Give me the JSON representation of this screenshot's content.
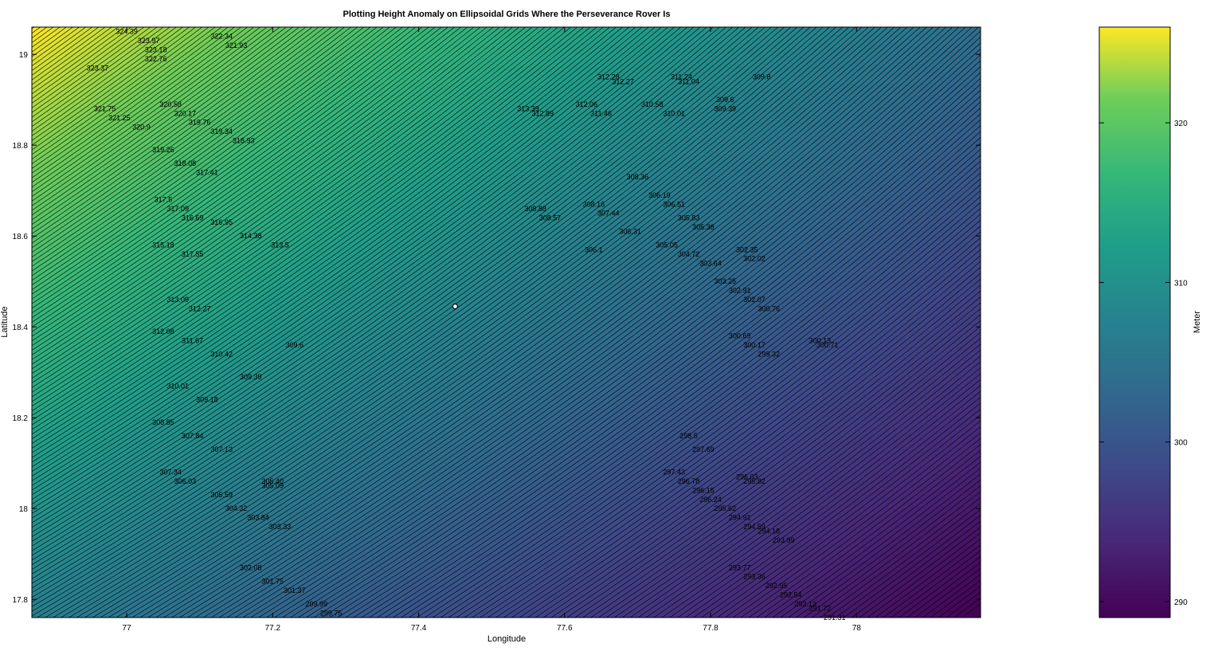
{
  "chart_data": {
    "type": "contour",
    "title": "Plotting Height Anomaly on Ellipsoidal Grids Where the Perseverance Rover Is",
    "xlabel": "Longitude",
    "ylabel": "Latitude",
    "xlim": [
      76.87,
      78.17
    ],
    "ylim": [
      17.76,
      19.06
    ],
    "xticks": [
      "77",
      "77.2",
      "77.4",
      "77.6",
      "77.8",
      "78"
    ],
    "yticks": [
      "17.8",
      "18",
      "18.2",
      "18.4",
      "18.6",
      "18.8",
      "19"
    ],
    "colormap": "viridis",
    "colorbar": {
      "label": "Meter",
      "limits": [
        289,
        326
      ],
      "ticks": [
        "290",
        "300",
        "310",
        "320"
      ]
    },
    "field": {
      "value_at_top_left": 326,
      "value_at_top_right": 304,
      "value_at_bottom_left": 307,
      "value_at_bottom_right": 289
    },
    "contour_interval": 0.15,
    "grid": false,
    "marker": {
      "lon": 77.45,
      "lat": 18.445,
      "label": ""
    },
    "labels": [
      {
        "lon": 77.0,
        "lat": 19.05,
        "text": "324.39"
      },
      {
        "lon": 77.03,
        "lat": 19.03,
        "text": "323.97"
      },
      {
        "lon": 77.04,
        "lat": 19.01,
        "text": "323.18"
      },
      {
        "lon": 77.04,
        "lat": 18.99,
        "text": "322.76"
      },
      {
        "lon": 77.13,
        "lat": 19.04,
        "text": "322.34"
      },
      {
        "lon": 77.15,
        "lat": 19.02,
        "text": "321.93"
      },
      {
        "lon": 76.96,
        "lat": 18.97,
        "text": "323.37"
      },
      {
        "lon": 76.97,
        "lat": 18.88,
        "text": "321.75"
      },
      {
        "lon": 76.99,
        "lat": 18.86,
        "text": "321.25"
      },
      {
        "lon": 77.02,
        "lat": 18.84,
        "text": "320.9"
      },
      {
        "lon": 77.06,
        "lat": 18.89,
        "text": "320.58"
      },
      {
        "lon": 77.08,
        "lat": 18.87,
        "text": "320.17"
      },
      {
        "lon": 77.1,
        "lat": 18.85,
        "text": "319.76"
      },
      {
        "lon": 77.13,
        "lat": 18.83,
        "text": "319.34"
      },
      {
        "lon": 77.16,
        "lat": 18.81,
        "text": "318.93"
      },
      {
        "lon": 77.05,
        "lat": 18.79,
        "text": "319.26"
      },
      {
        "lon": 77.08,
        "lat": 18.76,
        "text": "318.08"
      },
      {
        "lon": 77.11,
        "lat": 18.74,
        "text": "317.41"
      },
      {
        "lon": 77.05,
        "lat": 18.68,
        "text": "317.5"
      },
      {
        "lon": 77.07,
        "lat": 18.66,
        "text": "317.09"
      },
      {
        "lon": 77.09,
        "lat": 18.64,
        "text": "316.69"
      },
      {
        "lon": 77.13,
        "lat": 18.63,
        "text": "316.95"
      },
      {
        "lon": 77.17,
        "lat": 18.6,
        "text": "314.38"
      },
      {
        "lon": 77.21,
        "lat": 18.58,
        "text": "313.5"
      },
      {
        "lon": 77.05,
        "lat": 18.58,
        "text": "315.18"
      },
      {
        "lon": 77.09,
        "lat": 18.56,
        "text": "317.55"
      },
      {
        "lon": 77.07,
        "lat": 18.46,
        "text": "313.09"
      },
      {
        "lon": 77.1,
        "lat": 18.44,
        "text": "312.27"
      },
      {
        "lon": 77.05,
        "lat": 18.39,
        "text": "312.08"
      },
      {
        "lon": 77.09,
        "lat": 18.37,
        "text": "311.67"
      },
      {
        "lon": 77.13,
        "lat": 18.34,
        "text": "310.42"
      },
      {
        "lon": 77.23,
        "lat": 18.36,
        "text": "309.6"
      },
      {
        "lon": 77.17,
        "lat": 18.29,
        "text": "309.39"
      },
      {
        "lon": 77.07,
        "lat": 18.27,
        "text": "310.01"
      },
      {
        "lon": 77.11,
        "lat": 18.24,
        "text": "309.18"
      },
      {
        "lon": 77.05,
        "lat": 18.19,
        "text": "308.85"
      },
      {
        "lon": 77.09,
        "lat": 18.16,
        "text": "307.84"
      },
      {
        "lon": 77.13,
        "lat": 18.13,
        "text": "307.13"
      },
      {
        "lon": 77.06,
        "lat": 18.08,
        "text": "307.34"
      },
      {
        "lon": 77.08,
        "lat": 18.06,
        "text": "306.03"
      },
      {
        "lon": 77.13,
        "lat": 18.03,
        "text": "305.59"
      },
      {
        "lon": 77.2,
        "lat": 18.06,
        "text": "305.40"
      },
      {
        "lon": 77.2,
        "lat": 18.05,
        "text": "305.09"
      },
      {
        "lon": 77.15,
        "lat": 18.0,
        "text": "304.32"
      },
      {
        "lon": 77.18,
        "lat": 17.98,
        "text": "303.84"
      },
      {
        "lon": 77.21,
        "lat": 17.96,
        "text": "303.33"
      },
      {
        "lon": 77.17,
        "lat": 17.87,
        "text": "302.08"
      },
      {
        "lon": 77.2,
        "lat": 17.84,
        "text": "301.75"
      },
      {
        "lon": 77.23,
        "lat": 17.82,
        "text": "301.37"
      },
      {
        "lon": 77.26,
        "lat": 17.79,
        "text": "299.99"
      },
      {
        "lon": 77.28,
        "lat": 17.77,
        "text": "299.75"
      },
      {
        "lon": 77.55,
        "lat": 18.88,
        "text": "313.39"
      },
      {
        "lon": 77.57,
        "lat": 18.87,
        "text": "312.89"
      },
      {
        "lon": 77.63,
        "lat": 18.89,
        "text": "312.06"
      },
      {
        "lon": 77.65,
        "lat": 18.87,
        "text": "311.46"
      },
      {
        "lon": 77.66,
        "lat": 18.95,
        "text": "312.28"
      },
      {
        "lon": 77.68,
        "lat": 18.94,
        "text": "312.27"
      },
      {
        "lon": 77.76,
        "lat": 18.95,
        "text": "311.24"
      },
      {
        "lon": 77.77,
        "lat": 18.94,
        "text": "311.04"
      },
      {
        "lon": 77.87,
        "lat": 18.95,
        "text": "309.8"
      },
      {
        "lon": 77.72,
        "lat": 18.89,
        "text": "310.58"
      },
      {
        "lon": 77.75,
        "lat": 18.87,
        "text": "310.01"
      },
      {
        "lon": 77.82,
        "lat": 18.9,
        "text": "309.6"
      },
      {
        "lon": 77.82,
        "lat": 18.88,
        "text": "309.39"
      },
      {
        "lon": 77.7,
        "lat": 18.73,
        "text": "308.36"
      },
      {
        "lon": 77.56,
        "lat": 18.66,
        "text": "308.88"
      },
      {
        "lon": 77.58,
        "lat": 18.64,
        "text": "308.57"
      },
      {
        "lon": 77.64,
        "lat": 18.67,
        "text": "308.16"
      },
      {
        "lon": 77.66,
        "lat": 18.65,
        "text": "307.44"
      },
      {
        "lon": 77.73,
        "lat": 18.69,
        "text": "306.19"
      },
      {
        "lon": 77.75,
        "lat": 18.67,
        "text": "306.51"
      },
      {
        "lon": 77.69,
        "lat": 18.61,
        "text": "306.31"
      },
      {
        "lon": 77.77,
        "lat": 18.64,
        "text": "305.83"
      },
      {
        "lon": 77.79,
        "lat": 18.62,
        "text": "305.38"
      },
      {
        "lon": 77.74,
        "lat": 18.58,
        "text": "305.05"
      },
      {
        "lon": 77.77,
        "lat": 18.56,
        "text": "304.72"
      },
      {
        "lon": 77.8,
        "lat": 18.54,
        "text": "303.64"
      },
      {
        "lon": 77.85,
        "lat": 18.57,
        "text": "302.35"
      },
      {
        "lon": 77.86,
        "lat": 18.55,
        "text": "302.02"
      },
      {
        "lon": 77.64,
        "lat": 18.57,
        "text": "306.1"
      },
      {
        "lon": 77.82,
        "lat": 18.5,
        "text": "303.25"
      },
      {
        "lon": 77.84,
        "lat": 18.48,
        "text": "302.91"
      },
      {
        "lon": 77.86,
        "lat": 18.46,
        "text": "302.07"
      },
      {
        "lon": 77.88,
        "lat": 18.44,
        "text": "300.76"
      },
      {
        "lon": 77.84,
        "lat": 18.38,
        "text": "300.69"
      },
      {
        "lon": 77.86,
        "lat": 18.36,
        "text": "300.17"
      },
      {
        "lon": 77.88,
        "lat": 18.34,
        "text": "299.32"
      },
      {
        "lon": 77.95,
        "lat": 18.37,
        "text": "300.13"
      },
      {
        "lon": 77.96,
        "lat": 18.36,
        "text": "300.71"
      },
      {
        "lon": 77.77,
        "lat": 18.16,
        "text": "298.5"
      },
      {
        "lon": 77.79,
        "lat": 18.13,
        "text": "297.69"
      },
      {
        "lon": 77.75,
        "lat": 18.08,
        "text": "297.43"
      },
      {
        "lon": 77.77,
        "lat": 18.06,
        "text": "296.78"
      },
      {
        "lon": 77.79,
        "lat": 18.04,
        "text": "296.15"
      },
      {
        "lon": 77.8,
        "lat": 18.02,
        "text": "296.24"
      },
      {
        "lon": 77.85,
        "lat": 18.07,
        "text": "296.03"
      },
      {
        "lon": 77.86,
        "lat": 18.06,
        "text": "295.82"
      },
      {
        "lon": 77.82,
        "lat": 18.0,
        "text": "295.62"
      },
      {
        "lon": 77.84,
        "lat": 17.98,
        "text": "294.91"
      },
      {
        "lon": 77.86,
        "lat": 17.96,
        "text": "294.59"
      },
      {
        "lon": 77.88,
        "lat": 17.95,
        "text": "294.18"
      },
      {
        "lon": 77.9,
        "lat": 17.93,
        "text": "293.99"
      },
      {
        "lon": 77.84,
        "lat": 17.87,
        "text": "293.77"
      },
      {
        "lon": 77.86,
        "lat": 17.85,
        "text": "293.36"
      },
      {
        "lon": 77.89,
        "lat": 17.83,
        "text": "292.95"
      },
      {
        "lon": 77.91,
        "lat": 17.81,
        "text": "292.54"
      },
      {
        "lon": 77.93,
        "lat": 17.79,
        "text": "292.13"
      },
      {
        "lon": 77.95,
        "lat": 17.78,
        "text": "291.72"
      },
      {
        "lon": 77.97,
        "lat": 17.76,
        "text": "291.31"
      }
    ]
  }
}
